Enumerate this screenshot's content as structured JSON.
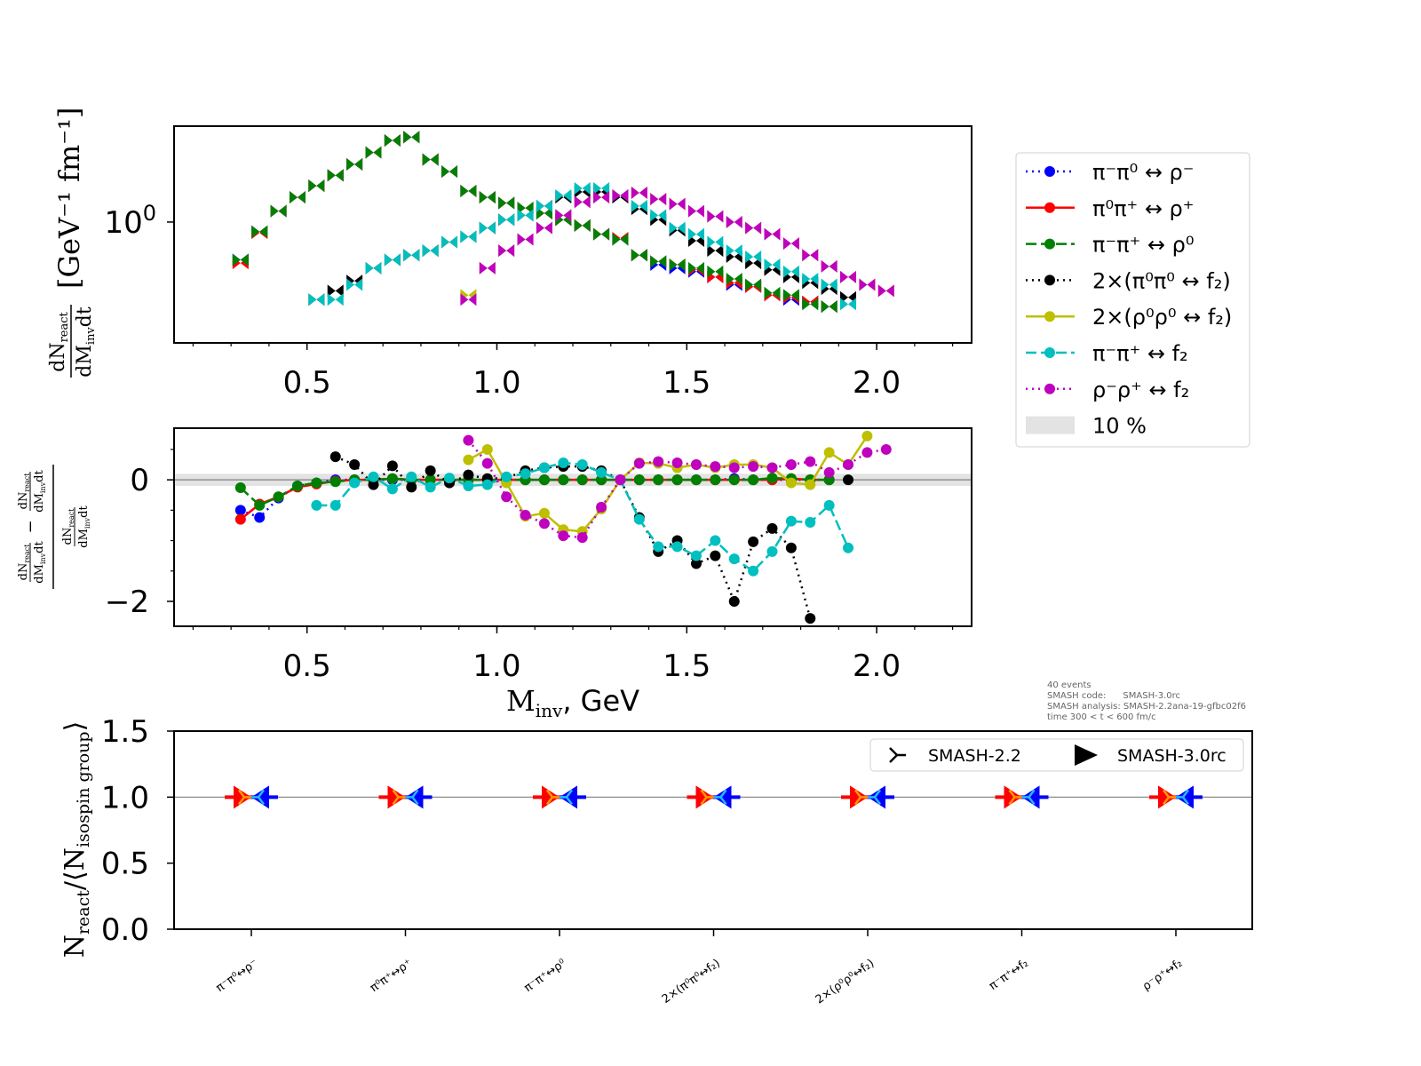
{
  "chart_data": [
    {
      "type": "scatter",
      "panel": "spectrum",
      "yscale": "log",
      "xlabel": "",
      "ylabel": {
        "num": "dN",
        "num_sub": "react",
        "den": "dM",
        "den_sub": "inv",
        "den_tail": "dt",
        "units": "[GeV⁻¹ fm⁻¹]"
      },
      "xlim": [
        0.15,
        2.25
      ],
      "ylim": [
        0.35,
        2.3
      ],
      "xticks": [
        0.5,
        1.0,
        1.5,
        2.0
      ],
      "xtick_labels": [
        "0.5",
        "1.0",
        "1.5",
        "2.0"
      ],
      "ytick_label": {
        "base": "10",
        "exp": "0"
      },
      "x_start": 0.325,
      "x_step": 0.05,
      "series": [
        {
          "name": "π⁻π⁰ ↔ ρ⁻",
          "color": "#0000ff",
          "offset": 0,
          "values": [
            0.72,
            0.92,
            1.1,
            1.24,
            1.37,
            1.5,
            1.65,
            1.83,
            2.03,
            2.09,
            1.72,
            1.55,
            1.31,
            1.24,
            1.18,
            1.13,
            1.08,
            1.02,
            0.97,
            0.9,
            0.86,
            0.75,
            0.69,
            0.67,
            0.65,
            0.62,
            0.58,
            0.57,
            0.53,
            0.51,
            0.5,
            0.48
          ]
        },
        {
          "name": "π⁰π⁺ ↔ ρ⁺",
          "color": "#ff0000",
          "offset": 0,
          "values": [
            0.7,
            0.91,
            1.1,
            1.24,
            1.37,
            1.5,
            1.65,
            1.83,
            2.03,
            2.09,
            1.72,
            1.55,
            1.31,
            1.24,
            1.18,
            1.13,
            1.08,
            1.02,
            0.97,
            0.9,
            0.87,
            0.75,
            0.71,
            0.69,
            0.66,
            0.62,
            0.59,
            0.57,
            0.53,
            0.52,
            0.5,
            0.48
          ]
        },
        {
          "name": "π⁻π⁺ ↔ ρ⁰",
          "color": "#008000",
          "offset": 0,
          "values": [
            0.72,
            0.92,
            1.1,
            1.24,
            1.37,
            1.5,
            1.65,
            1.83,
            2.03,
            2.09,
            1.72,
            1.55,
            1.31,
            1.24,
            1.18,
            1.13,
            1.08,
            1.02,
            0.97,
            0.9,
            0.86,
            0.75,
            0.71,
            0.69,
            0.67,
            0.65,
            0.61,
            0.58,
            0.54,
            0.53,
            0.49,
            0.48
          ]
        },
        {
          "name": "2×(π⁰π⁰ ↔ f₂)",
          "color": "#000000",
          "offset": 4,
          "values": [
            0.51,
            0.55,
            0.6,
            0.67,
            0.72,
            0.75,
            0.78,
            0.84,
            0.88,
            0.95,
            1.02,
            1.06,
            1.15,
            1.24,
            1.3,
            1.3,
            1.24,
            1.12,
            1.02,
            0.93,
            0.85,
            0.78,
            0.74,
            0.7,
            0.66,
            0.62,
            0.59,
            0.56,
            0.52
          ]
        },
        {
          "name": "2×(ρ⁰ρ⁰ ↔ f₂)",
          "color": "#bfbf00",
          "offset": 12,
          "values": [
            0.53,
            0.67,
            0.78,
            0.86,
            0.95,
            1.06,
            1.19,
            1.24,
            1.26,
            1.29,
            1.22,
            1.17,
            1.1,
            1.05,
            1.0,
            0.95,
            0.9,
            0.83,
            0.75,
            0.68,
            0.62,
            0.58,
            0.55
          ]
        },
        {
          "name": "π⁻π⁺ ↔ f₂",
          "color": "#00bfbf",
          "offset": 4,
          "values": [
            0.51,
            0.51,
            0.58,
            0.67,
            0.72,
            0.75,
            0.78,
            0.84,
            0.88,
            0.95,
            1.02,
            1.06,
            1.15,
            1.26,
            1.34,
            1.34,
            1.26,
            1.15,
            1.06,
            0.95,
            0.9,
            0.84,
            0.78,
            0.74,
            0.69,
            0.65,
            0.61,
            0.58,
            0.49
          ]
        },
        {
          "name": "ρ⁻ρ⁺ ↔ f₂",
          "color": "#bf00bf",
          "offset": 12,
          "values": [
            0.51,
            0.67,
            0.78,
            0.86,
            0.95,
            1.06,
            1.19,
            1.24,
            1.26,
            1.29,
            1.22,
            1.17,
            1.1,
            1.05,
            1.0,
            0.95,
            0.9,
            0.83,
            0.75,
            0.68,
            0.62,
            0.58,
            0.55
          ]
        }
      ]
    },
    {
      "type": "line",
      "panel": "relative-difference",
      "xlabel": {
        "main": "M",
        "sub": "inv",
        "tail": ", GeV"
      },
      "ylabel": {
        "a": "dN",
        "a_sub": "react",
        "b": "dM",
        "b_sub": "inv",
        "b_tail": "dt",
        "minus": "−"
      },
      "xlim": [
        0.15,
        2.25
      ],
      "ylim": [
        -2.41,
        0.85
      ],
      "xticks": [
        0.5,
        1.0,
        1.5,
        2.0
      ],
      "xtick_labels": [
        "0.5",
        "1.0",
        "1.5",
        "2.0"
      ],
      "yticks": [
        0,
        -2
      ],
      "ytick_labels": [
        "0",
        "−2"
      ],
      "band": {
        "label": "10 %",
        "halfwidth": 0.1
      },
      "x_start": 0.325,
      "x_step": 0.05,
      "series": [
        {
          "name": "π⁻π⁰ ↔ ρ⁻",
          "color": "#0000ff",
          "dash": "dotted",
          "offset": 0,
          "values": [
            -0.5,
            -0.62,
            -0.3,
            -0.1,
            -0.05,
            0,
            0,
            0,
            0,
            0,
            0,
            0,
            0,
            0,
            0,
            0,
            0,
            0,
            0,
            0,
            0,
            0,
            0,
            0,
            0,
            0,
            0.02,
            0,
            0,
            0,
            0,
            0
          ]
        },
        {
          "name": "π⁰π⁺ ↔ ρ⁺",
          "color": "#ff0000",
          "dash": "solid",
          "offset": 0,
          "values": [
            -0.65,
            -0.4,
            -0.28,
            -0.12,
            -0.07,
            -0.02,
            0,
            0,
            0.02,
            0,
            0,
            0,
            0,
            0,
            0,
            0,
            0,
            0,
            0,
            0,
            0,
            0,
            0,
            0,
            0,
            0,
            0,
            0,
            0,
            0.02,
            0,
            0
          ]
        },
        {
          "name": "π⁻π⁺ ↔ ρ⁰",
          "color": "#008000",
          "dash": "dashed",
          "offset": 0,
          "values": [
            -0.13,
            -0.42,
            -0.28,
            -0.1,
            -0.05,
            -0.03,
            0,
            0,
            0.02,
            0,
            0,
            0,
            0,
            0,
            0,
            0,
            0,
            0,
            0,
            0,
            0,
            0,
            0,
            0,
            0,
            0,
            0,
            0,
            0.03,
            0.02,
            0,
            0
          ]
        },
        {
          "name": "2×(π⁰π⁰ ↔ f₂)",
          "color": "#000000",
          "dash": "dotted",
          "offset": 5,
          "values": [
            0.38,
            0.25,
            -0.08,
            0.23,
            -0.12,
            0.15,
            -0.05,
            0.08,
            0.02,
            0.03,
            0.15,
            0.2,
            0.22,
            0.22,
            0.15,
            0,
            -0.62,
            -1.18,
            -1.0,
            -1.38,
            -1.25,
            -2.0,
            -1.02,
            -0.8,
            -1.12,
            -2.28,
            null,
            0
          ]
        },
        {
          "name": "2×(ρ⁰ρ⁰ ↔ f₂)",
          "color": "#bfbf00",
          "dash": "solid",
          "offset": 12,
          "values": [
            0.33,
            0.5,
            -0.05,
            -0.6,
            -0.55,
            -0.82,
            -0.85,
            -0.48,
            0,
            0.28,
            0.27,
            0.2,
            0.25,
            0.2,
            0.25,
            0.25,
            0.2,
            -0.05,
            -0.08,
            0.45,
            0.25,
            0.72
          ]
        },
        {
          "name": "π⁻π⁺ ↔ f₂",
          "color": "#00bfbf",
          "dash": "dashed",
          "offset": 4,
          "values": [
            -0.42,
            -0.42,
            -0.05,
            0.05,
            -0.15,
            0.05,
            -0.12,
            0.03,
            -0.1,
            -0.08,
            0.05,
            0.1,
            0.2,
            0.28,
            0.25,
            0.12,
            0,
            -0.65,
            -1.1,
            -1.1,
            -1.25,
            -1.0,
            -1.3,
            -1.5,
            -1.18,
            -0.68,
            -0.7,
            -0.42,
            -1.12
          ]
        },
        {
          "name": "ρ⁻ρ⁺ ↔ f₂",
          "color": "#bf00bf",
          "dash": "dotted",
          "offset": 12,
          "values": [
            0.65,
            0.27,
            -0.28,
            -0.58,
            -0.72,
            -0.92,
            -0.95,
            -0.45,
            0,
            0.27,
            0.3,
            0.28,
            0.25,
            0.22,
            0.2,
            0.22,
            0.2,
            0.25,
            0.3,
            0.12,
            0.25,
            0.45,
            0.5
          ]
        }
      ]
    },
    {
      "type": "scatter",
      "panel": "ratio",
      "ylabel": "N_react/⟨N_isospin group⟩",
      "ylabel_parts": {
        "a": "N",
        "a_sub": "react",
        "b": "/⟨N",
        "b_sub": "isospin group",
        "c": "⟩"
      },
      "ylim": [
        0.0,
        1.5
      ],
      "yticks": [
        0.0,
        0.5,
        1.0,
        1.5
      ],
      "ytick_labels": [
        "0.0",
        "0.5",
        "1.0",
        "1.5"
      ],
      "categories": [
        "π⁻π⁰↔ρ⁻",
        "π⁰π⁺↔ρ⁺",
        "π⁻π⁺↔ρ⁰",
        "2×(π⁰π⁰↔f₂)",
        "2×(ρ⁰ρ⁰↔f₂)",
        "π⁻π⁺↔f₂",
        "ρ⁻ρ⁺↔f₂"
      ],
      "series": [
        {
          "name": "SMASH-2.2",
          "marker": "tri-left",
          "values": [
            1.0,
            1.0,
            1.0,
            1.0,
            1.0,
            1.0,
            1.0
          ]
        },
        {
          "name": "SMASH-3.0rc",
          "marker": "triangle-right",
          "values": [
            1.0,
            1.0,
            1.0,
            1.0,
            1.0,
            1.0,
            1.0
          ]
        }
      ],
      "legend": [
        "SMASH-2.2",
        "SMASH-3.0rc"
      ]
    }
  ],
  "info": {
    "line1": "40 events",
    "line2": "SMASH code:      SMASH-3.0rc",
    "line3": "SMASH analysis: SMASH-2.2ana-19-gfbc02f6",
    "line4": "time 300 < t < 600 fm/c"
  }
}
